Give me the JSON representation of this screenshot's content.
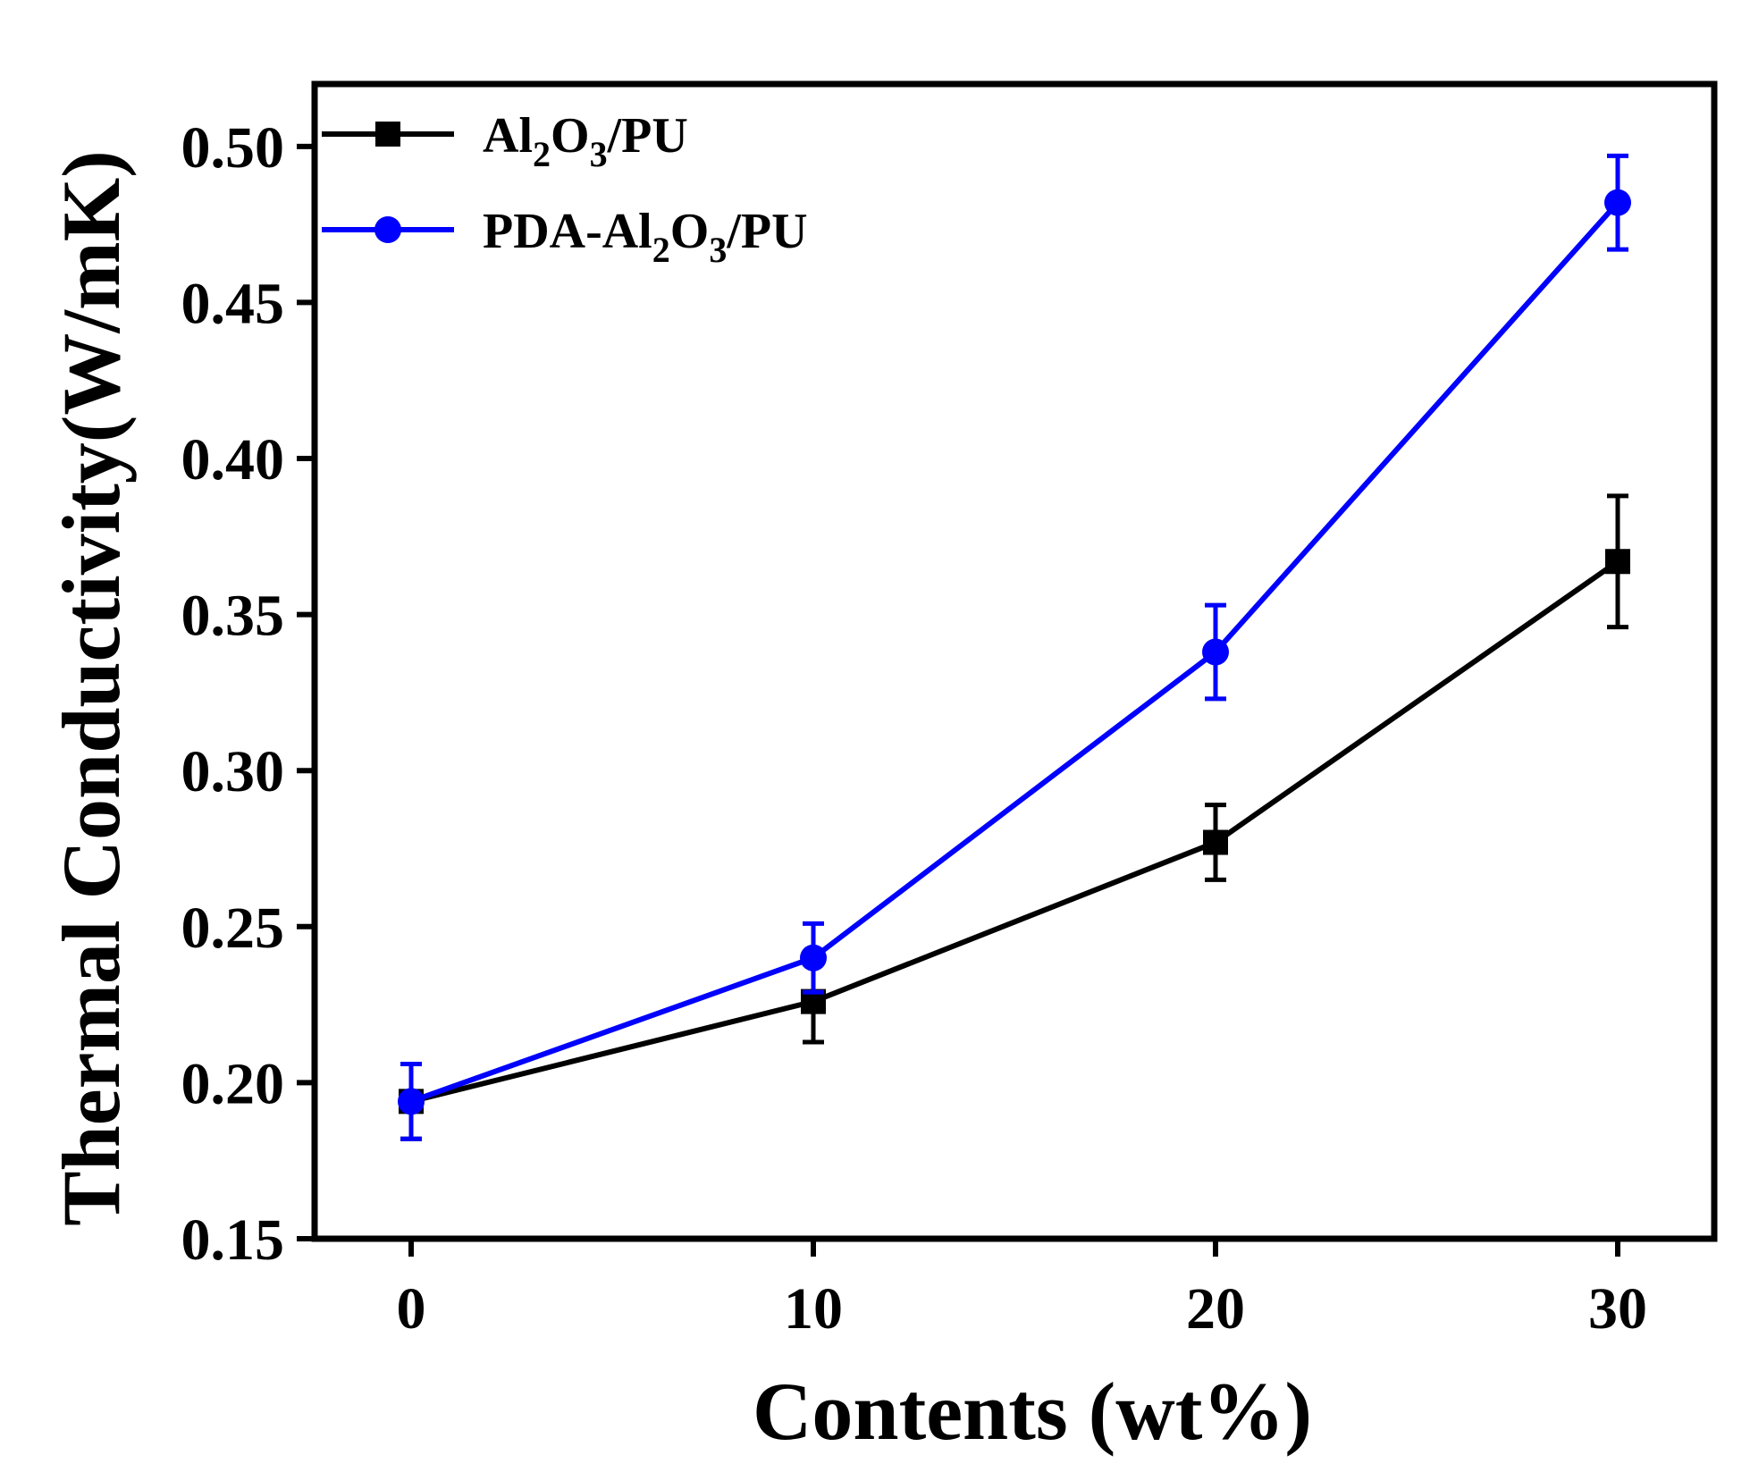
{
  "chart_data": {
    "type": "line",
    "title": "",
    "xlabel": "Contents (wt%)",
    "ylabel": "Thermal Conductivity(W/mK)",
    "x": [
      0,
      10,
      20,
      30
    ],
    "xlim": [
      -2.4,
      32.4
    ],
    "ylim": [
      0.15,
      0.52
    ],
    "xticks": [
      0,
      10,
      20,
      30
    ],
    "xtick_labels": [
      "0",
      "10",
      "20",
      "30"
    ],
    "yticks": [
      0.15,
      0.2,
      0.25,
      0.3,
      0.35,
      0.4,
      0.45,
      0.5
    ],
    "ytick_labels": [
      "0.15",
      "0.20",
      "0.25",
      "0.30",
      "0.35",
      "0.40",
      "0.45",
      "0.50"
    ],
    "grid": false,
    "legend_position": "top-left",
    "series": [
      {
        "name_main": "Al",
        "name_parts": [
          {
            "text": "Al",
            "sub": false
          },
          {
            "text": "2",
            "sub": true
          },
          {
            "text": "O",
            "sub": false
          },
          {
            "text": "3",
            "sub": true
          },
          {
            "text": "/PU",
            "sub": false
          }
        ],
        "marker": "square",
        "color": "#000000",
        "values": [
          0.194,
          0.226,
          0.277,
          0.367
        ],
        "errors": [
          0.012,
          0.013,
          0.012,
          0.021
        ]
      },
      {
        "name_parts": [
          {
            "text": "PDA-Al",
            "sub": false
          },
          {
            "text": "2",
            "sub": true
          },
          {
            "text": "O",
            "sub": false
          },
          {
            "text": "3",
            "sub": true
          },
          {
            "text": "/PU",
            "sub": false
          }
        ],
        "marker": "circle",
        "color": "#0000ff",
        "values": [
          0.194,
          0.24,
          0.338,
          0.482
        ],
        "errors": [
          0.012,
          0.011,
          0.015,
          0.015
        ]
      }
    ]
  }
}
